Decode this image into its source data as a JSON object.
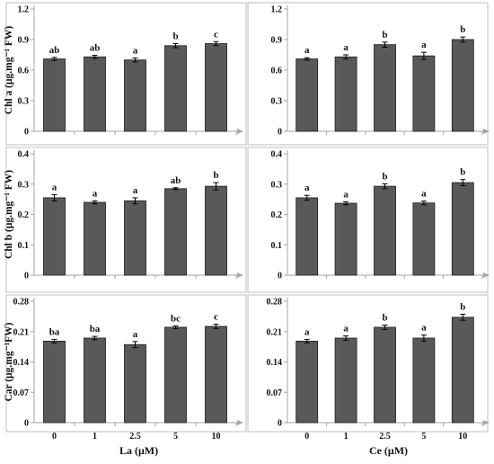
{
  "chart_data": [
    {
      "id": "chla_la",
      "type": "bar",
      "ylabel": "Chl a (μg.mg⁻¹ FW)",
      "xlabel": "",
      "categories": [
        "0",
        "1",
        "2.5",
        "5",
        "10"
      ],
      "ylim": [
        0,
        1.2
      ],
      "yticks": [
        "0",
        "0.3",
        "0.6",
        "0.9",
        "1.2"
      ],
      "values": [
        0.71,
        0.73,
        0.7,
        0.84,
        0.86
      ],
      "errors": [
        0.015,
        0.015,
        0.02,
        0.02,
        0.02
      ],
      "letters": [
        "ab",
        "ab",
        "a",
        "b",
        "c"
      ]
    },
    {
      "id": "chla_ce",
      "type": "bar",
      "ylabel": "",
      "xlabel": "",
      "categories": [
        "0",
        "1",
        "2.5",
        "5",
        "10"
      ],
      "ylim": [
        0,
        1.2
      ],
      "yticks": [
        "0",
        "0.3",
        "0.6",
        "0.9",
        "1.2"
      ],
      "values": [
        0.71,
        0.73,
        0.85,
        0.74,
        0.9
      ],
      "errors": [
        0.012,
        0.02,
        0.025,
        0.035,
        0.025
      ],
      "letters": [
        "a",
        "a",
        "b",
        "a",
        "b"
      ]
    },
    {
      "id": "chlb_la",
      "type": "bar",
      "ylabel": "Chl b (μg.mg⁻¹ FW)",
      "xlabel": "",
      "categories": [
        "0",
        "1",
        "2.5",
        "5",
        "10"
      ],
      "ylim": [
        0,
        0.4
      ],
      "yticks": [
        "0",
        "0.1",
        "0.2",
        "0.3",
        "0.4"
      ],
      "values": [
        0.255,
        0.24,
        0.245,
        0.285,
        0.293
      ],
      "errors": [
        0.01,
        0.005,
        0.01,
        0.003,
        0.012
      ],
      "letters": [
        "a",
        "a",
        "a",
        "ab",
        "b"
      ]
    },
    {
      "id": "chlb_ce",
      "type": "bar",
      "ylabel": "",
      "xlabel": "",
      "categories": [
        "0",
        "1",
        "2.5",
        "5",
        "10"
      ],
      "ylim": [
        0,
        0.4
      ],
      "yticks": [
        "0",
        "0.1",
        "0.2",
        "0.3",
        "0.4"
      ],
      "values": [
        0.255,
        0.237,
        0.293,
        0.238,
        0.305
      ],
      "errors": [
        0.008,
        0.005,
        0.008,
        0.006,
        0.01
      ],
      "letters": [
        "a",
        "a",
        "b",
        "a",
        "b"
      ]
    },
    {
      "id": "car_la",
      "type": "bar",
      "ylabel": "Car (μg.mg⁻¹FW)",
      "xlabel": "La (μM)",
      "categories": [
        "0",
        "1",
        "2.5",
        "5",
        "10"
      ],
      "ylim": [
        0,
        0.28
      ],
      "yticks": [
        "0",
        "0.07",
        "0.14",
        "0.21",
        "0.28"
      ],
      "values": [
        0.188,
        0.195,
        0.18,
        0.22,
        0.222
      ],
      "errors": [
        0.004,
        0.004,
        0.007,
        0.003,
        0.005
      ],
      "letters": [
        "ba",
        "ba",
        "a",
        "bc",
        "c"
      ]
    },
    {
      "id": "car_ce",
      "type": "bar",
      "ylabel": "",
      "xlabel": "Ce (μM)",
      "categories": [
        "0",
        "1",
        "2.5",
        "5",
        "10"
      ],
      "ylim": [
        0,
        0.28
      ],
      "yticks": [
        "0",
        "0.07",
        "0.14",
        "0.21",
        "0.28"
      ],
      "values": [
        0.188,
        0.195,
        0.22,
        0.195,
        0.243
      ],
      "errors": [
        0.004,
        0.005,
        0.005,
        0.007,
        0.007
      ],
      "letters": [
        "a",
        "a",
        "b",
        "a",
        "b"
      ]
    }
  ],
  "colors": {
    "bar": "#595959",
    "bar_edge": "#1a1a1a",
    "axis": "#a6a6a6",
    "frame": "#bfbfbf",
    "text": "#111111"
  }
}
